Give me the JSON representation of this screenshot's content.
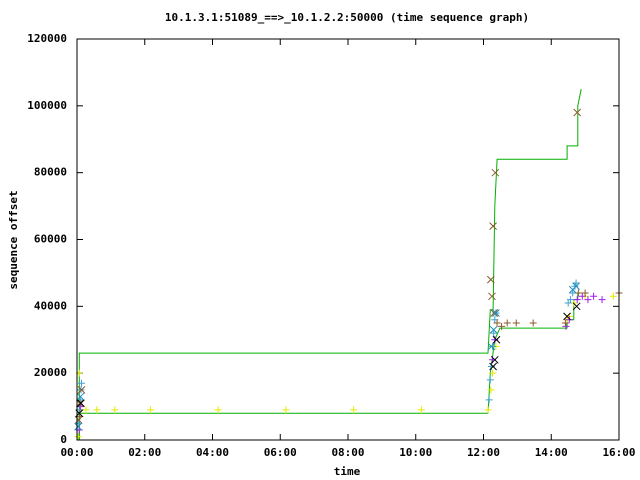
{
  "chart_data": {
    "type": "line",
    "title": "10.1.3.1:51089_==>_10.1.2.2:50000 (time sequence graph)",
    "x_label": "time",
    "y_label": "sequence offset",
    "xlim": [
      0,
      960
    ],
    "ylim": [
      0,
      120000
    ],
    "xticks": [
      {
        "value": 0,
        "label": "00:00"
      },
      {
        "value": 120,
        "label": "02:00"
      },
      {
        "value": 240,
        "label": "04:00"
      },
      {
        "value": 360,
        "label": "06:00"
      },
      {
        "value": 480,
        "label": "08:00"
      },
      {
        "value": 600,
        "label": "10:00"
      },
      {
        "value": 720,
        "label": "12:00"
      },
      {
        "value": 840,
        "label": "14:00"
      },
      {
        "value": 960,
        "label": "16:00"
      }
    ],
    "yticks": [
      0,
      20000,
      40000,
      60000,
      80000,
      100000,
      120000
    ],
    "series": [
      {
        "type": "step",
        "color": "#00b000",
        "x": [
          0,
          4,
          4,
          728,
          732,
          737,
          740,
          744,
          868,
          868,
          887,
          887,
          893
        ],
        "values": [
          0,
          0,
          26000,
          26000,
          39000,
          39000,
          70000,
          84000,
          84000,
          88000,
          88000,
          100000,
          105000
        ]
      },
      {
        "type": "step",
        "color": "#00b000",
        "x": [
          0,
          4,
          4,
          728,
          732,
          740,
          749,
          868,
          868,
          880,
          880,
          887,
          887
        ],
        "values": [
          0,
          0,
          8000,
          8000,
          20000,
          30000,
          33500,
          33500,
          36000,
          36000,
          42000,
          42000,
          44000
        ]
      },
      {
        "type": "scatter",
        "marker": "+",
        "color": "#e8e800",
        "x": [
          2,
          4,
          6,
          16,
          35,
          67,
          130,
          250,
          370,
          490,
          610,
          728,
          733,
          736,
          742,
          868,
          872,
          880,
          900,
          950
        ],
        "values": [
          1000,
          20000,
          9000,
          9000,
          9000,
          9000,
          9000,
          9000,
          9000,
          9000,
          9000,
          9000,
          15000,
          20000,
          28000,
          36000,
          37000,
          41000,
          43000,
          43000
        ]
      },
      {
        "type": "scatter",
        "marker": "+",
        "color": "#3fa0d0",
        "x": [
          3,
          5,
          6,
          7,
          8,
          730,
          732,
          734,
          736,
          738,
          740,
          742,
          870,
          874,
          878,
          882,
          884
        ],
        "values": [
          5000,
          9000,
          12000,
          15000,
          17000,
          12000,
          18000,
          22000,
          28000,
          32000,
          36000,
          38000,
          41000,
          42000,
          44000,
          46000,
          47000
        ]
      },
      {
        "type": "scatter",
        "marker": "+",
        "color": "#a020f0",
        "x": [
          4,
          6,
          736,
          740,
          866,
          872,
          886,
          895,
          905,
          915,
          930
        ],
        "values": [
          3000,
          10000,
          24000,
          30000,
          34000,
          36000,
          42000,
          43000,
          42000,
          43000,
          42000
        ]
      },
      {
        "type": "scatter",
        "marker": "+",
        "color": "#8b5a2b",
        "x": [
          5,
          744,
          752,
          762,
          778,
          808,
          865,
          888,
          900,
          960
        ],
        "values": [
          7000,
          35000,
          34000,
          35000,
          35000,
          35000,
          35000,
          44000,
          44000,
          44000
        ]
      },
      {
        "type": "scatter",
        "marker": "x",
        "color": "#8b5a2b",
        "x": [
          3,
          5,
          8,
          733,
          735,
          737,
          739,
          741,
          886
        ],
        "values": [
          6000,
          11000,
          15000,
          48000,
          43000,
          64000,
          38000,
          80000,
          98000
        ]
      },
      {
        "type": "scatter",
        "marker": "x",
        "color": "#000000",
        "x": [
          4,
          7,
          737,
          740,
          743,
          868,
          885
        ],
        "values": [
          8000,
          11000,
          22000,
          24000,
          30000,
          37000,
          40000
        ]
      },
      {
        "type": "scatter",
        "marker": "x",
        "color": "#1e90c0",
        "x": [
          2,
          6,
          734,
          738,
          742,
          878,
          884
        ],
        "values": [
          4000,
          13000,
          28000,
          33000,
          38000,
          45000,
          46000
        ]
      }
    ]
  }
}
